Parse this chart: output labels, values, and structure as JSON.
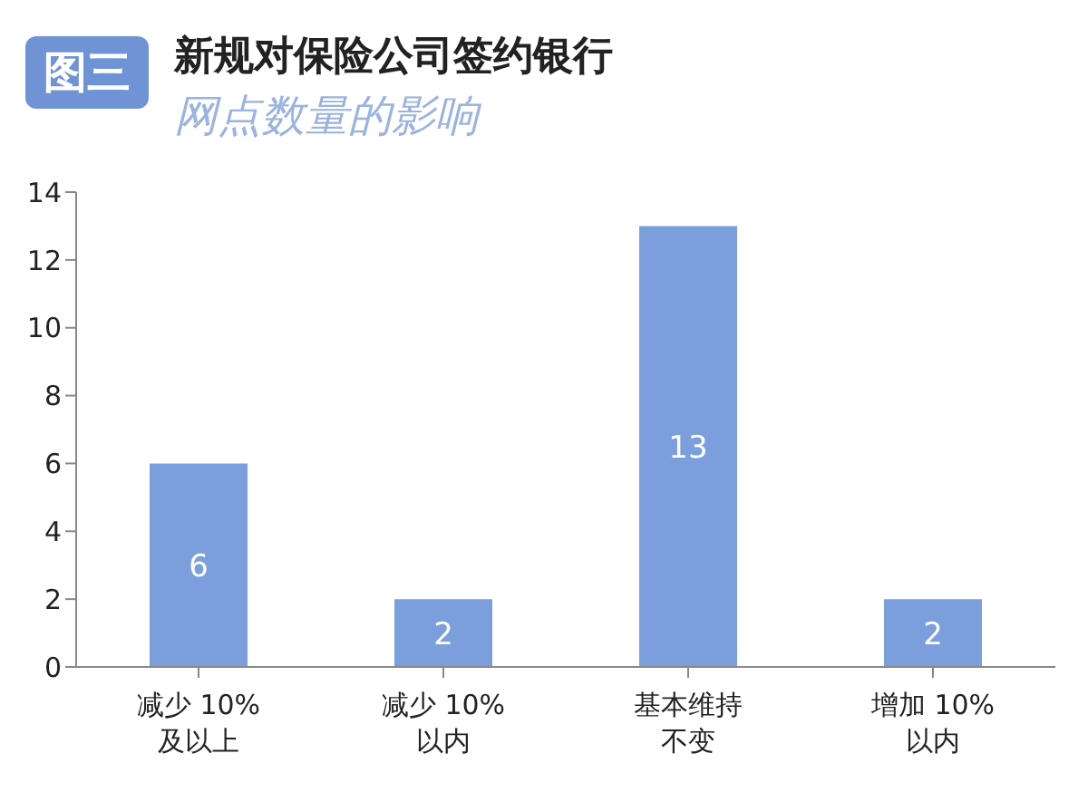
{
  "chart_data": {
    "type": "bar",
    "title": "新规对保险公司签约银行",
    "subtitle": "网点数量的影响",
    "annotations": [
      "图三"
    ],
    "categories": [
      "减少 10%及以上",
      "减少 10%以内",
      "基本维持不变",
      "增加 10%以内"
    ],
    "values": [
      6,
      2,
      13,
      2
    ],
    "color": "#7b9fdc",
    "data_labels": true,
    "ylim": [
      0,
      14
    ],
    "yticks": [
      0,
      2,
      4,
      6,
      8,
      10,
      12,
      14
    ],
    "grid": false,
    "legend": false
  }
}
